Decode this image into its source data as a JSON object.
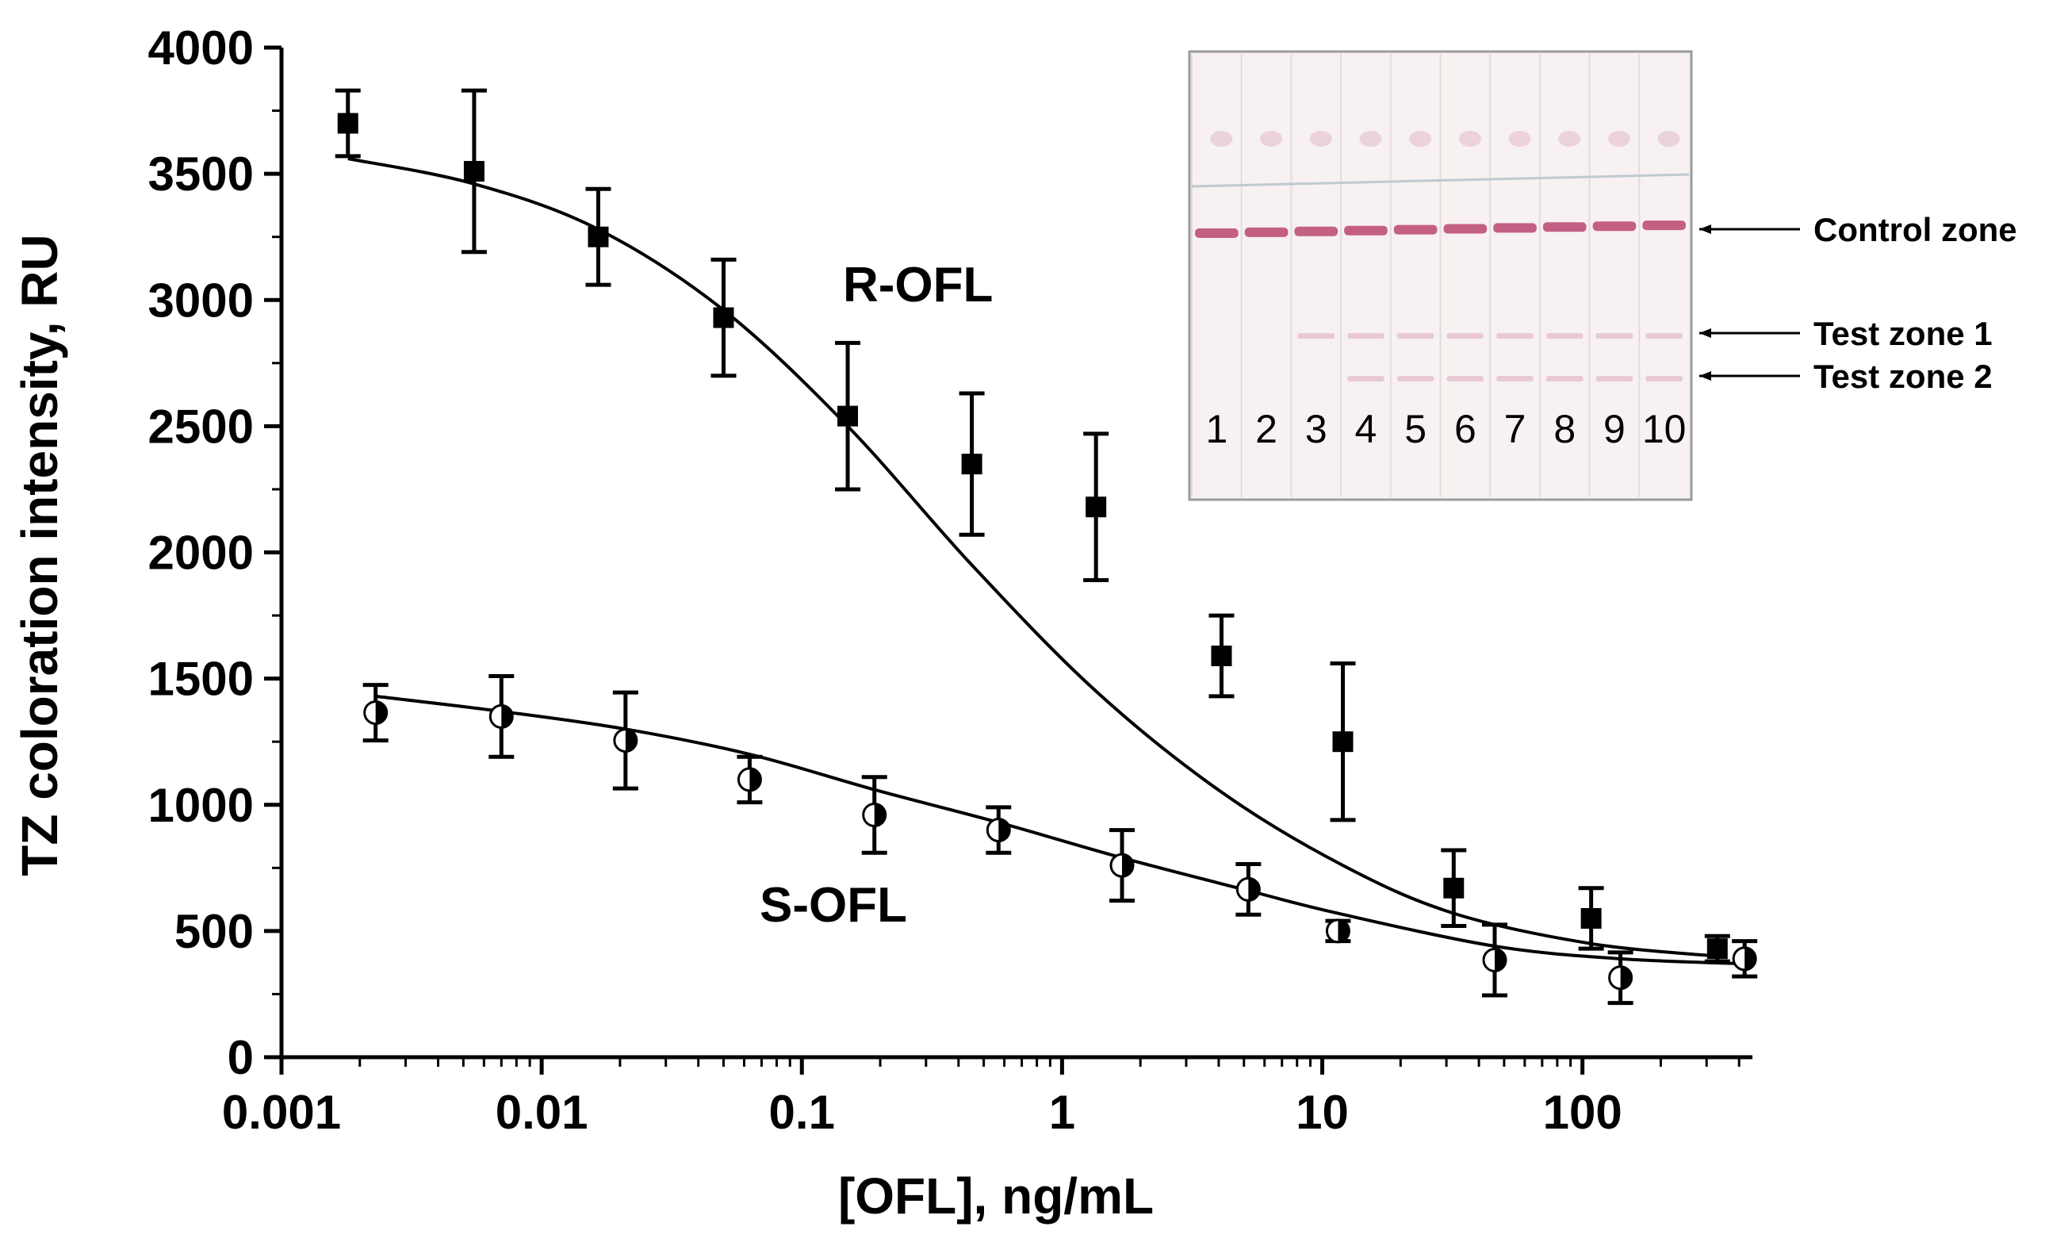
{
  "chart_data": {
    "type": "scatter",
    "title": "",
    "xlabel": "[OFL], ng/mL",
    "ylabel": "TZ coloration intensity, RU",
    "xscale": "log",
    "xlim": [
      0.001,
      450
    ],
    "ylim": [
      0,
      4000
    ],
    "x_ticks": [
      0.001,
      0.01,
      0.1,
      1,
      10,
      100
    ],
    "x_tick_labels": [
      "0.001",
      "0.01",
      "0.1",
      "1",
      "10",
      "100"
    ],
    "y_ticks": [
      0,
      500,
      1000,
      1500,
      2000,
      2500,
      3000,
      3500,
      4000
    ],
    "y_tick_labels": [
      "0",
      "500",
      "1000",
      "1500",
      "2000",
      "2500",
      "3000",
      "3500",
      "4000"
    ],
    "series": [
      {
        "name": "R-OFL",
        "label": "R-OFL",
        "marker": "filled-square",
        "x": [
          0.0018,
          0.0055,
          0.0165,
          0.05,
          0.15,
          0.45,
          1.35,
          4.1,
          12,
          32,
          108,
          330
        ],
        "y": [
          3700,
          3510,
          3250,
          2930,
          2540,
          2350,
          2180,
          1590,
          1250,
          670,
          550,
          430
        ],
        "err": [
          130,
          320,
          190,
          230,
          290,
          280,
          290,
          160,
          310,
          150,
          120,
          50
        ],
        "fit_y": [
          3560,
          3460,
          3280,
          2960,
          2500,
          1950,
          1450,
          1050,
          760,
          570,
          450,
          400
        ]
      },
      {
        "name": "S-OFL",
        "label": "S-OFL",
        "marker": "half-filled-circle",
        "x": [
          0.0023,
          0.007,
          0.021,
          0.063,
          0.19,
          0.57,
          1.7,
          5.2,
          11.5,
          46,
          140,
          420
        ],
        "y": [
          1365,
          1350,
          1255,
          1100,
          960,
          900,
          760,
          665,
          500,
          385,
          315,
          390
        ],
        "err": [
          110,
          160,
          190,
          90,
          150,
          90,
          140,
          100,
          40,
          140,
          100,
          70
        ],
        "fit_y": [
          1430,
          1370,
          1300,
          1200,
          1060,
          930,
          790,
          660,
          570,
          440,
          390,
          370
        ]
      }
    ]
  },
  "inset": {
    "lane_numbers": [
      "1",
      "2",
      "3",
      "4",
      "5",
      "6",
      "7",
      "8",
      "9",
      "10"
    ],
    "labels": [
      "Control zone",
      "Test zone 1",
      "Test zone 2"
    ],
    "colors": {
      "background": "#f7f1f1",
      "control_band": "#c45f84",
      "test_band": "#e8c9d3",
      "top_band": "#ecd2dc",
      "border": "#9a9a9a"
    }
  }
}
